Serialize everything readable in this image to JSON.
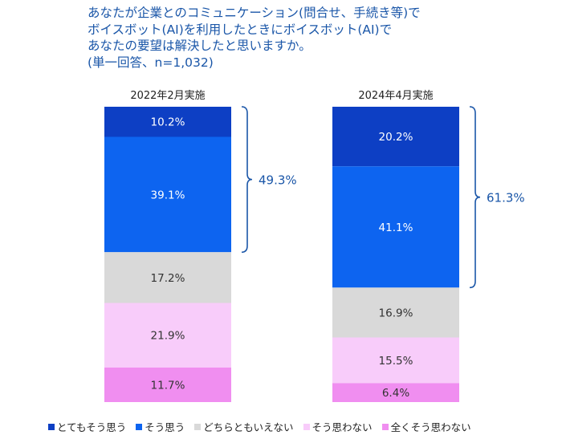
{
  "title_lines": [
    "あなたが企業とのコミュニケーション(問合せ、手続き等)で",
    "ボイスボット(AI)を利用したときにボイスボット(AI)で",
    "あなたの要望は解決したと思いますか。",
    "(単一回答、n=1,032)"
  ],
  "colors": {
    "title": "#1a56a8",
    "bracket": "#1a56a8",
    "segment_label_light": "#ffffff",
    "segment_label_dark": "#333333"
  },
  "chart_data": {
    "type": "bar",
    "stacked": true,
    "orientation": "vertical",
    "percent_stacked": true,
    "categories": [
      "2022年2月実施",
      "2024年4月実施"
    ],
    "series": [
      {
        "name": "とてもそう思う",
        "color": "#0d3fc4",
        "values": [
          10.2,
          20.2
        ]
      },
      {
        "name": "そう思う",
        "color": "#0d64f0",
        "values": [
          39.1,
          41.1
        ]
      },
      {
        "name": "どちらともいえない",
        "color": "#d9d9d9",
        "values": [
          17.2,
          16.9
        ]
      },
      {
        "name": "そう思わない",
        "color": "#f8ccfa",
        "values": [
          21.9,
          15.5
        ]
      },
      {
        "name": "全くそう思わない",
        "color": "#f08ef0",
        "values": [
          11.7,
          6.4
        ]
      }
    ],
    "value_labels": [
      [
        "10.2%",
        "39.1%",
        "17.2%",
        "21.9%",
        "11.7%"
      ],
      [
        "20.2%",
        "41.1%",
        "16.9%",
        "15.5%",
        "6.4%"
      ]
    ],
    "bracket_totals": [
      "49.3%",
      "61.3%"
    ],
    "legend_position": "bottom"
  }
}
